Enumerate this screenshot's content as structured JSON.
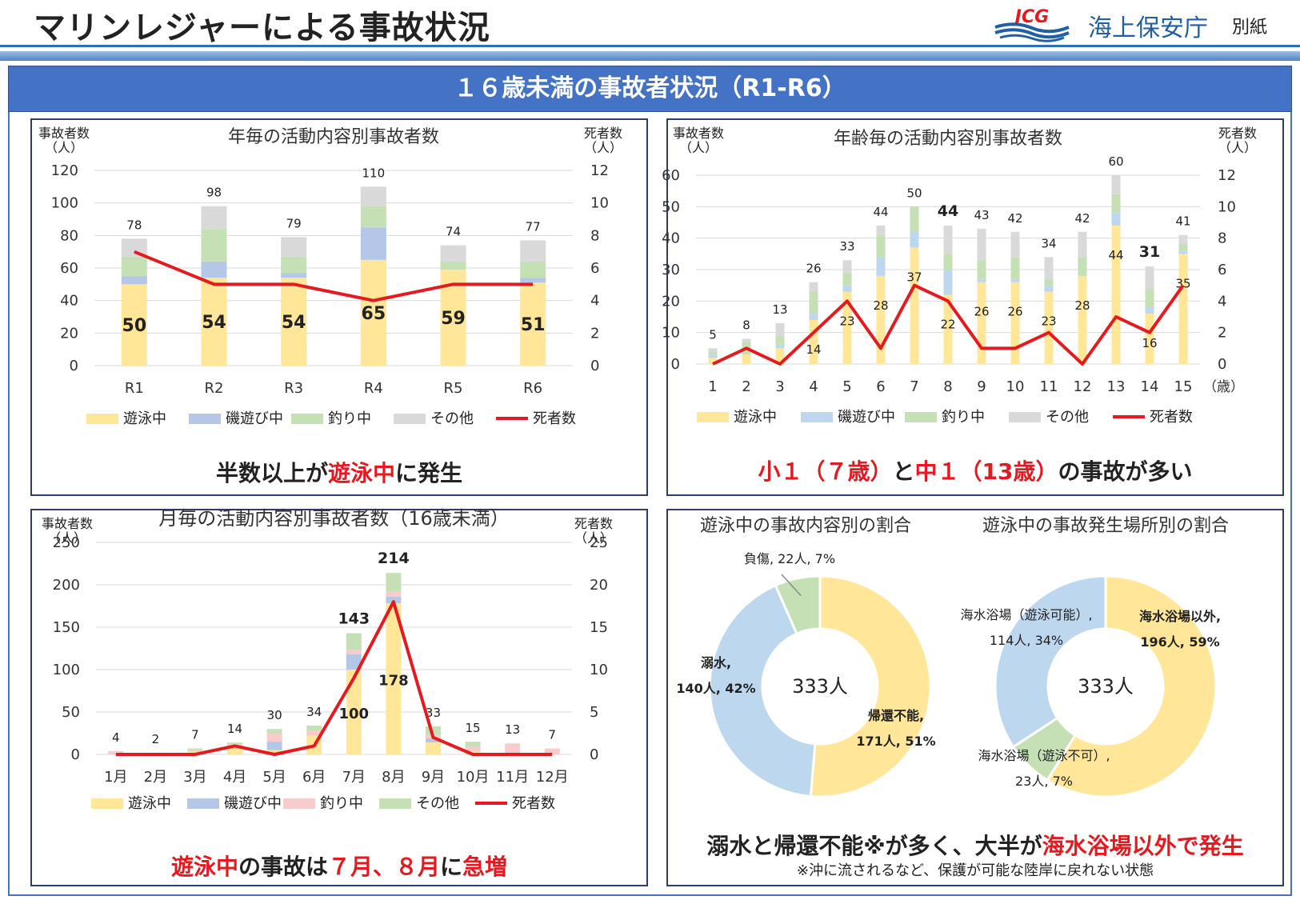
{
  "header": {
    "title": "マリンレジャーによる事故状況",
    "logo_text": "JCG",
    "agency": "海上保安庁",
    "attachment": "別紙"
  },
  "banner": {
    "title": "１６歳未満の事故者状況（R1-R6）"
  },
  "colors": {
    "swimming": "#ffe699",
    "rock_play": "#b4c7e7",
    "fishing_green": "#c5e0b4",
    "fishing_pink": "#f8cbcc",
    "other": "#d9d9d9",
    "deaths": "#e8191e",
    "banner": "#4472c4"
  },
  "panel_year": {
    "caption_parts": [
      "半数以上が",
      "遊泳中",
      "に発生"
    ],
    "chart_data": {
      "type": "bar",
      "stacked": true,
      "title": "年毎の活動内容別事故者数",
      "ylabel": "事故者数\n（人）",
      "y2label": "死者数\n（人）",
      "ylim": [
        0,
        120
      ],
      "yticks": [
        0,
        20,
        40,
        60,
        80,
        100,
        120
      ],
      "y2lim": [
        0,
        12
      ],
      "y2ticks": [
        0,
        2,
        4,
        6,
        8,
        10,
        12
      ],
      "categories": [
        "R1",
        "R2",
        "R3",
        "R4",
        "R5",
        "R6"
      ],
      "series": [
        {
          "name": "遊泳中",
          "values": [
            50,
            54,
            54,
            65,
            59,
            51
          ],
          "color": "#ffe699",
          "labeled": true
        },
        {
          "name": "磯遊び中",
          "values": [
            5,
            10,
            3,
            20,
            0,
            3
          ],
          "color": "#b4c7e7"
        },
        {
          "name": "釣り中",
          "values": [
            12,
            20,
            10,
            13,
            5,
            10
          ],
          "color": "#c5e0b4"
        },
        {
          "name": "その他",
          "values": [
            11,
            14,
            12,
            12,
            10,
            13
          ],
          "color": "#d9d9d9"
        }
      ],
      "totals": [
        78,
        98,
        79,
        110,
        74,
        77
      ],
      "line": {
        "name": "死者数",
        "values": [
          7,
          5,
          5,
          4,
          5,
          5
        ],
        "color": "#e8191e"
      },
      "legend": "bottom"
    }
  },
  "panel_age": {
    "caption_parts": [
      "小１（７歳）",
      "と",
      "中１（13歳）",
      "の事故が多い"
    ],
    "chart_data": {
      "type": "bar",
      "stacked": true,
      "title": "年齢毎の活動内容別事故者数",
      "ylabel": "事故者数\n（人）",
      "y2label": "死者数\n（人）",
      "ylim": [
        0,
        60
      ],
      "yticks": [
        0,
        10,
        20,
        30,
        40,
        50,
        60
      ],
      "y2lim": [
        0,
        12
      ],
      "y2ticks": [
        0,
        2,
        4,
        6,
        8,
        10,
        12
      ],
      "categories": [
        "1",
        "2",
        "3",
        "4",
        "5",
        "6",
        "7",
        "8",
        "9",
        "10",
        "11",
        "12",
        "13",
        "14",
        "15"
      ],
      "x_unit": "（歳）",
      "series": [
        {
          "name": "遊泳中",
          "values": [
            2,
            3,
            5,
            14,
            23,
            28,
            37,
            22,
            26,
            26,
            23,
            28,
            44,
            16,
            35
          ],
          "color": "#ffe699",
          "labels": [
            "",
            "",
            "",
            "14",
            "23",
            "28",
            "37",
            "22",
            "26",
            "26",
            "23",
            "28",
            "44",
            "16",
            "35"
          ]
        },
        {
          "name": "磯遊び中",
          "values": [
            1,
            0,
            1,
            2,
            2,
            6,
            5,
            8,
            1,
            1,
            2,
            0,
            4,
            2,
            1
          ],
          "color": "#bdd7ee"
        },
        {
          "name": "釣り中",
          "values": [
            1,
            4,
            3,
            7,
            4,
            7,
            8,
            5,
            6,
            7,
            2,
            6,
            6,
            6,
            2
          ],
          "color": "#c5e0b4"
        },
        {
          "name": "その他",
          "values": [
            1,
            1,
            4,
            3,
            4,
            3,
            0,
            9,
            10,
            8,
            7,
            8,
            6,
            7,
            3
          ],
          "color": "#d9d9d9"
        }
      ],
      "totals": [
        5,
        8,
        13,
        26,
        33,
        44,
        50,
        44,
        43,
        42,
        34,
        42,
        60,
        31,
        41
      ],
      "bold_totals": [
        7,
        13
      ],
      "line": {
        "name": "死者数",
        "values": [
          0,
          1,
          0,
          2,
          4,
          1,
          5,
          4,
          1,
          1,
          2,
          0,
          3,
          2,
          5
        ],
        "color": "#e8191e"
      },
      "legend": "bottom"
    }
  },
  "panel_month": {
    "caption_parts": [
      "遊泳中",
      "の事故は",
      "７月、８月",
      "に",
      "急増"
    ],
    "chart_data": {
      "type": "bar",
      "stacked": true,
      "title": "月毎の活動内容別事故者数（16歳未満）",
      "ylabel": "事故者数\n（人）",
      "y2label": "死者数\n（人）",
      "ylim": [
        0,
        250
      ],
      "yticks": [
        0,
        50,
        100,
        150,
        200,
        250
      ],
      "y2lim": [
        0,
        25
      ],
      "y2ticks": [
        0,
        5,
        10,
        15,
        20,
        25
      ],
      "categories": [
        "1月",
        "2月",
        "3月",
        "4月",
        "5月",
        "6月",
        "7月",
        "8月",
        "9月",
        "10月",
        "11月",
        "12月"
      ],
      "series": [
        {
          "name": "遊泳中",
          "values": [
            0,
            0,
            3,
            8,
            5,
            22,
            100,
            178,
            14,
            3,
            0,
            0
          ],
          "color": "#ffe699",
          "labels": [
            "",
            "",
            "",
            "",
            "",
            "",
            "100",
            "178",
            "",
            "",
            "",
            ""
          ]
        },
        {
          "name": "磯遊び中",
          "values": [
            0,
            0,
            0,
            0,
            10,
            0,
            18,
            8,
            5,
            0,
            0,
            0
          ],
          "color": "#b4c7e7"
        },
        {
          "name": "釣り中",
          "values": [
            4,
            2,
            2,
            4,
            10,
            6,
            5,
            6,
            4,
            6,
            13,
            7
          ],
          "color": "#f8cbcc"
        },
        {
          "name": "その他",
          "values": [
            0,
            0,
            2,
            2,
            5,
            6,
            20,
            22,
            10,
            6,
            0,
            0
          ],
          "color": "#c5e0b4"
        }
      ],
      "totals": [
        4,
        2,
        7,
        14,
        30,
        34,
        143,
        214,
        33,
        15,
        13,
        7
      ],
      "bold_totals": [
        6,
        7
      ],
      "line": {
        "name": "死者数",
        "values": [
          0,
          0,
          0,
          1,
          0,
          1,
          9,
          18,
          2,
          0,
          0,
          0
        ],
        "color": "#e8191e"
      },
      "legend": "bottom"
    }
  },
  "panel_pie": {
    "caption_parts": [
      "溺水と帰還不能※が多く、大半が",
      "海水浴場以外で発生"
    ],
    "footnote": "※沖に流されるなど、保護が可能な陸岸に戻れない状態",
    "chart_data": [
      {
        "type": "pie",
        "donut": true,
        "title": "遊泳中の事故内容別の割合",
        "center_label": "333人",
        "slices": [
          {
            "label": "帰還不能",
            "value": 171,
            "percent": 51,
            "color": "#ffe699",
            "text1": "帰還不能,",
            "text2": "171人, 51%",
            "bold": true
          },
          {
            "label": "溺水",
            "value": 140,
            "percent": 42,
            "color": "#bdd7ee",
            "text1": "溺水,",
            "text2": "140人, 42%",
            "bold": true
          },
          {
            "label": "負傷",
            "value": 22,
            "percent": 7,
            "color": "#c5e0b4",
            "text1": "負傷, 22人, 7%",
            "text2": "",
            "bold": false
          }
        ]
      },
      {
        "type": "pie",
        "donut": true,
        "title": "遊泳中の事故発生場所別の割合",
        "center_label": "333人",
        "slices": [
          {
            "label": "海水浴場以外",
            "value": 196,
            "percent": 59,
            "color": "#ffe699",
            "text1": "海水浴場以外,",
            "text2": "196人, 59%",
            "bold": true
          },
          {
            "label": "海水浴場（遊泳不可）",
            "value": 23,
            "percent": 7,
            "color": "#c5e0b4",
            "text1": "海水浴場（遊泳不可）,",
            "text2": "23人, 7%",
            "bold": false
          },
          {
            "label": "海水浴場（遊泳可能）",
            "value": 114,
            "percent": 34,
            "color": "#bdd7ee",
            "text1": "海水浴場（遊泳可能）,",
            "text2": "114人, 34%",
            "bold": false
          }
        ]
      }
    ]
  }
}
